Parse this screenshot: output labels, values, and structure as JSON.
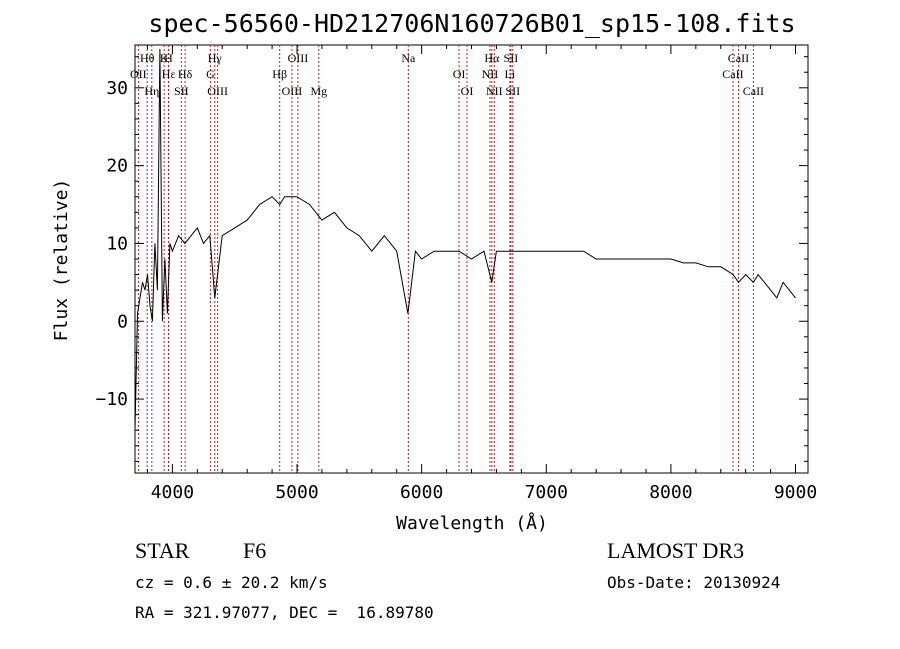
{
  "chart_data": {
    "type": "line",
    "title": "spec-56560-HD212706N160726B01_sp15-108.fits",
    "xlabel": "Wavelength (Å)",
    "ylabel": "Flux (relative)",
    "xlim": [
      3700,
      9100
    ],
    "ylim": [
      -19.5,
      35.5
    ],
    "x_ticks": [
      4000,
      5000,
      6000,
      7000,
      8000,
      9000
    ],
    "y_ticks": [
      -10,
      0,
      10,
      20,
      30
    ],
    "x_tick_labels": [
      "4000",
      "5000",
      "6000",
      "7000",
      "8000",
      "9000"
    ],
    "y_tick_labels": [
      "−10",
      "0",
      "10",
      "20",
      "30"
    ],
    "grid": false,
    "line_color": "#000000",
    "marker_color": "#b22222",
    "series": [
      {
        "x": [
          3700,
          3720,
          3740,
          3760,
          3780,
          3800,
          3820,
          3840,
          3860,
          3880,
          3900,
          3920,
          3940,
          3960,
          3980,
          4000,
          4050,
          4100,
          4150,
          4200,
          4250,
          4300,
          4340,
          4400,
          4500,
          4600,
          4700,
          4800,
          4861,
          4900,
          5000,
          5100,
          5200,
          5300,
          5400,
          5500,
          5600,
          5700,
          5800,
          5890,
          5950,
          6000,
          6100,
          6200,
          6300,
          6400,
          6500,
          6563,
          6600,
          6700,
          6800,
          6900,
          7000,
          7100,
          7200,
          7300,
          7400,
          7500,
          7600,
          7700,
          7800,
          7900,
          8000,
          8100,
          8200,
          8300,
          8400,
          8500,
          8542,
          8600,
          8662,
          8700,
          8750,
          8800,
          8850,
          8900,
          8950,
          9000
        ],
        "y": [
          -14,
          1,
          3,
          5,
          4,
          6,
          2,
          0,
          10,
          4,
          35,
          0,
          8,
          1,
          10,
          9,
          11,
          10,
          11,
          12,
          10,
          11,
          3,
          11,
          12,
          13,
          15,
          16,
          15,
          16,
          16,
          15,
          13,
          14,
          12,
          11,
          9,
          11,
          9,
          1,
          9,
          8,
          9,
          9,
          9,
          8,
          9,
          5,
          9,
          9,
          9,
          9,
          9,
          9,
          9,
          9,
          8,
          8,
          8,
          8,
          8,
          8,
          8,
          7.5,
          7.5,
          7,
          7,
          6,
          5,
          6,
          5,
          6,
          5,
          4,
          3,
          5,
          4,
          3
        ]
      }
    ],
    "lines": [
      {
        "label": "Hθ",
        "x": 3798
      },
      {
        "label": "OII",
        "x": 3727
      },
      {
        "label": "Hη",
        "x": 3835
      },
      {
        "label": "K",
        "x": 3934
      },
      {
        "label": "Hε",
        "x": 3970
      },
      {
        "label": "SII",
        "x": 4072
      },
      {
        "label": "H",
        "x": 3968
      },
      {
        "label": "Hδ",
        "x": 4102
      },
      {
        "label": "OIII",
        "x": 4363
      },
      {
        "label": "Hγ",
        "x": 4340
      },
      {
        "label": "G",
        "x": 4305
      },
      {
        "label": "OIII",
        "x": 4959
      },
      {
        "label": "OIII",
        "x": 5007
      },
      {
        "label": "Hβ",
        "x": 4861
      },
      {
        "label": "Mg",
        "x": 5175
      },
      {
        "label": "Na",
        "x": 5893
      },
      {
        "label": "OI",
        "x": 6300
      },
      {
        "label": "OI",
        "x": 6364
      },
      {
        "label": "Hα",
        "x": 6563
      },
      {
        "label": "NII",
        "x": 6548
      },
      {
        "label": "NII",
        "x": 6583
      },
      {
        "label": "SII",
        "x": 6716
      },
      {
        "label": "Li",
        "x": 6708
      },
      {
        "label": "SII",
        "x": 6731
      },
      {
        "label": "CaII",
        "x": 8542
      },
      {
        "label": "CaII",
        "x": 8498
      },
      {
        "label": "CaII",
        "x": 8662
      }
    ]
  },
  "info": {
    "object_type": "STAR",
    "subclass": "F6",
    "cz": "cz = 0.6 ± 20.2 km/s",
    "radec": "RA = 321.97077, DEC =  16.89780",
    "survey": "LAMOST DR3",
    "obs_date": "Obs-Date: 20130924"
  }
}
